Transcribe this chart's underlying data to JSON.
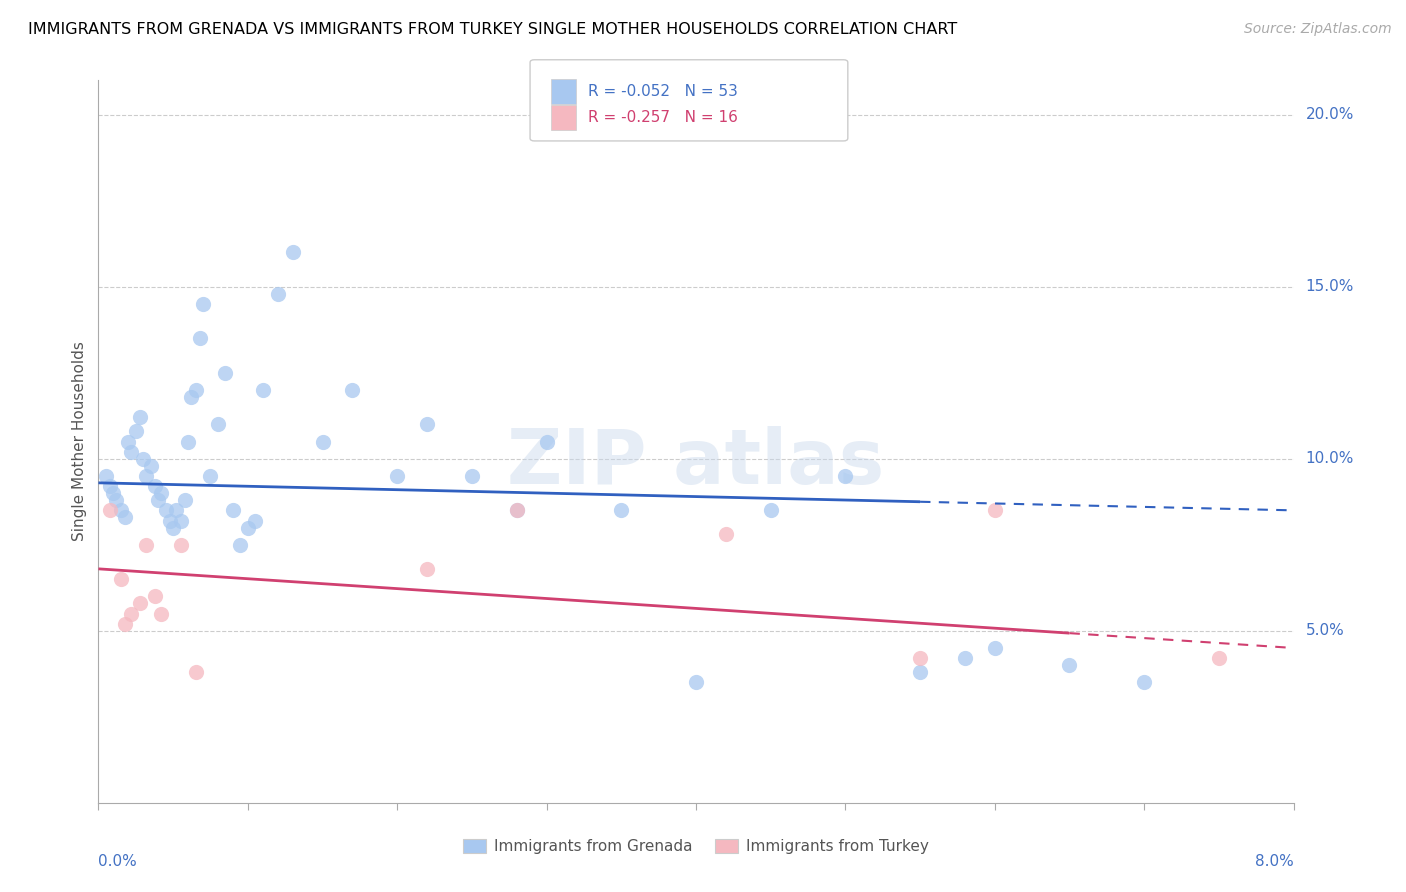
{
  "title": "IMMIGRANTS FROM GRENADA VS IMMIGRANTS FROM TURKEY SINGLE MOTHER HOUSEHOLDS CORRELATION CHART",
  "source": "Source: ZipAtlas.com",
  "ylabel": "Single Mother Households",
  "xlim": [
    0.0,
    8.0
  ],
  "ylim": [
    0.0,
    21.0
  ],
  "yticks": [
    5.0,
    10.0,
    15.0,
    20.0
  ],
  "grenada_R": -0.052,
  "grenada_N": 53,
  "turkey_R": -0.257,
  "turkey_N": 16,
  "grenada_color": "#a8c8f0",
  "turkey_color": "#f5b8c0",
  "grenada_line_color": "#3060c0",
  "turkey_line_color": "#d04070",
  "grenada_x": [
    0.05,
    0.08,
    0.1,
    0.12,
    0.15,
    0.18,
    0.2,
    0.22,
    0.25,
    0.28,
    0.3,
    0.32,
    0.35,
    0.38,
    0.4,
    0.42,
    0.45,
    0.48,
    0.5,
    0.52,
    0.55,
    0.58,
    0.6,
    0.62,
    0.65,
    0.68,
    0.7,
    0.75,
    0.8,
    0.85,
    0.9,
    0.95,
    1.0,
    1.05,
    1.1,
    1.2,
    1.3,
    1.5,
    1.7,
    2.0,
    2.2,
    2.5,
    2.8,
    3.0,
    3.5,
    4.0,
    4.5,
    5.0,
    5.5,
    5.8,
    6.0,
    6.5,
    7.0
  ],
  "grenada_y": [
    9.5,
    9.2,
    9.0,
    8.8,
    8.5,
    8.3,
    10.5,
    10.2,
    10.8,
    11.2,
    10.0,
    9.5,
    9.8,
    9.2,
    8.8,
    9.0,
    8.5,
    8.2,
    8.0,
    8.5,
    8.2,
    8.8,
    10.5,
    11.8,
    12.0,
    13.5,
    14.5,
    9.5,
    11.0,
    12.5,
    8.5,
    7.5,
    8.0,
    8.2,
    12.0,
    14.8,
    16.0,
    10.5,
    12.0,
    9.5,
    11.0,
    9.5,
    8.5,
    10.5,
    8.5,
    3.5,
    8.5,
    9.5,
    3.8,
    4.2,
    4.5,
    4.0,
    3.5
  ],
  "turkey_x": [
    0.08,
    0.15,
    0.18,
    0.22,
    0.28,
    0.32,
    0.38,
    0.42,
    0.55,
    0.65,
    2.2,
    2.8,
    4.2,
    5.5,
    6.0,
    7.5
  ],
  "turkey_y": [
    8.5,
    6.5,
    5.2,
    5.5,
    5.8,
    7.5,
    6.0,
    5.5,
    7.5,
    3.8,
    6.8,
    8.5,
    7.8,
    4.2,
    8.5,
    4.2
  ],
  "grenada_line_y0": 9.3,
  "grenada_line_y1": 8.5,
  "turkey_line_y0": 6.8,
  "turkey_line_y1": 4.5,
  "grenada_solid_end": 5.5,
  "turkey_solid_end": 6.5
}
